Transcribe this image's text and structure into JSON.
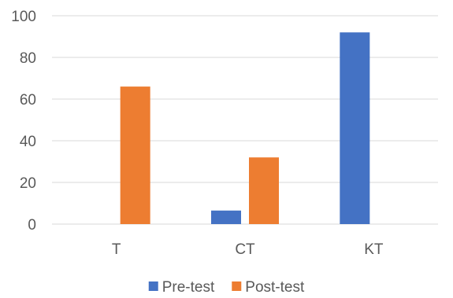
{
  "chart_data": {
    "type": "bar",
    "categories": [
      "T",
      "CT",
      "KT"
    ],
    "series": [
      {
        "name": "Pre-test",
        "values": [
          0,
          6.5,
          92
        ],
        "color": "#4472C4"
      },
      {
        "name": "Post-test",
        "values": [
          66,
          32,
          0
        ],
        "color": "#ED7D31"
      }
    ],
    "title": "",
    "xlabel": "",
    "ylabel": "",
    "ylim": [
      0,
      100
    ],
    "yticks": [
      0,
      20,
      40,
      60,
      80,
      100
    ],
    "grid": true,
    "legend_position": "bottom"
  }
}
